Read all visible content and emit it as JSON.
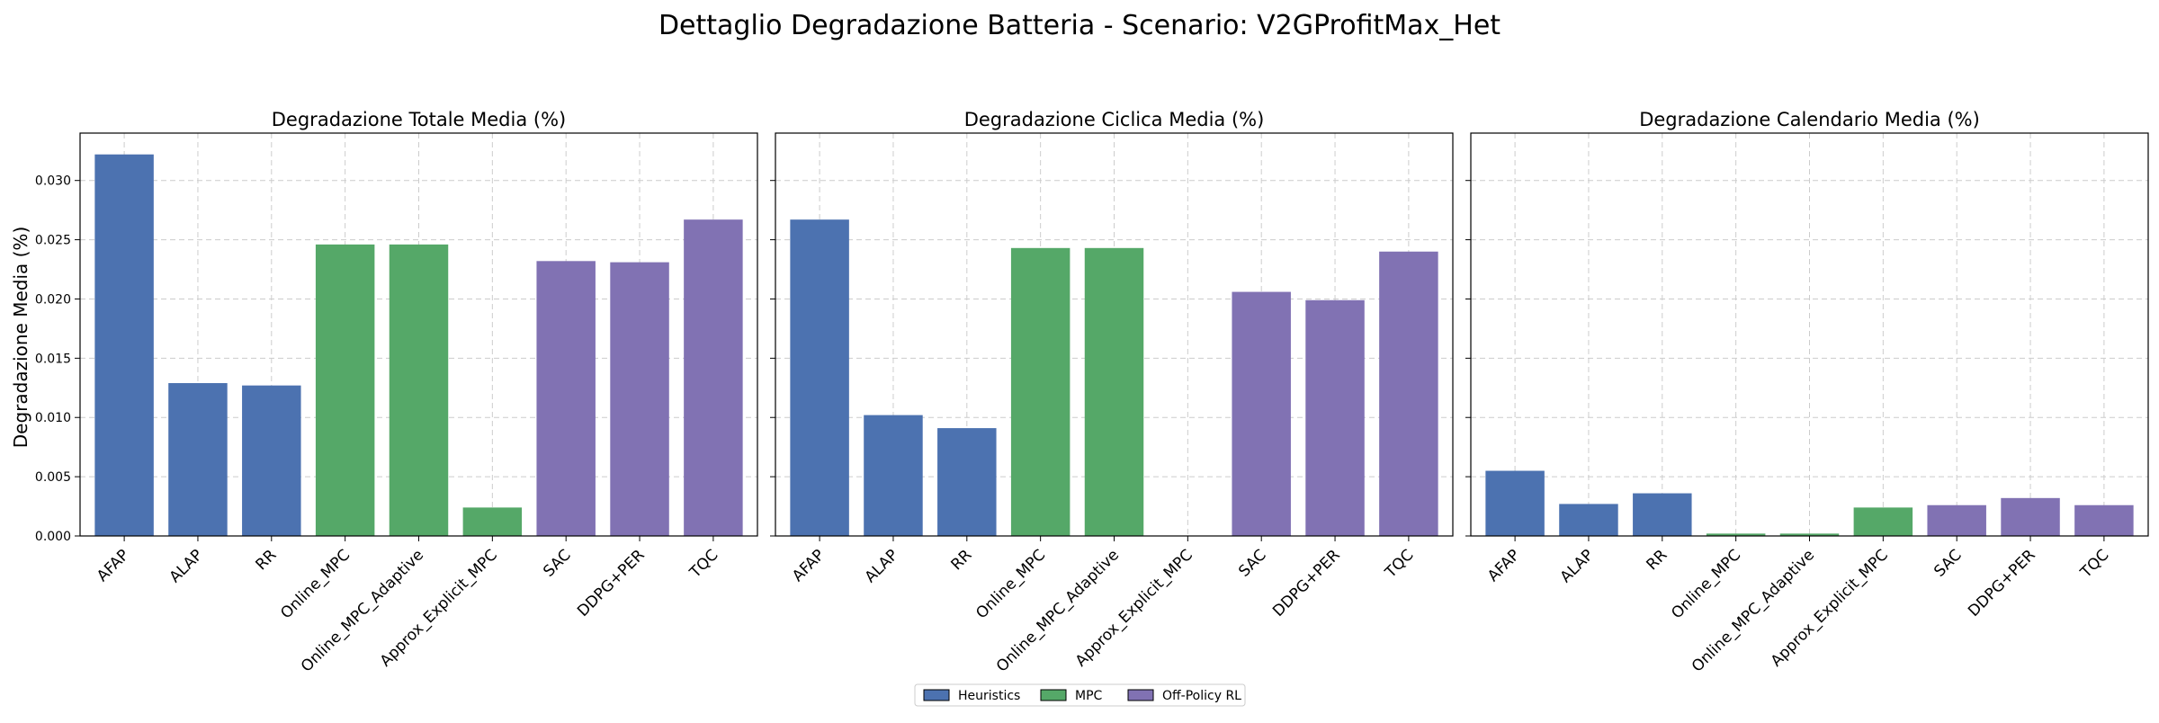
{
  "figure": {
    "title": "Dettaglio Degradazione Batteria - Scenario: V2GProfitMax_Het",
    "ylabel": "Degradazione Media (%)"
  },
  "legend": {
    "placement": "bottom-center",
    "items": [
      {
        "label": "Heuristics",
        "color": "#4c72b0"
      },
      {
        "label": "MPC",
        "color": "#55a868"
      },
      {
        "label": "Off-Policy RL",
        "color": "#8172b3"
      }
    ]
  },
  "colors": {
    "Heuristics": "#4c72b0",
    "MPC": "#55a868",
    "Off-Policy RL": "#8172b3",
    "grid": "#cccccc"
  },
  "chart_data": [
    {
      "type": "bar",
      "title": "Degradazione Totale Media (%)",
      "categories": [
        "AFAP",
        "ALAP",
        "RR",
        "Online_MPC",
        "Online_MPC_Adaptive",
        "Approx_Explicit_MPC",
        "SAC",
        "DDPG+PER",
        "TQC"
      ],
      "groups": [
        "Heuristics",
        "Heuristics",
        "Heuristics",
        "MPC",
        "MPC",
        "MPC",
        "Off-Policy RL",
        "Off-Policy RL",
        "Off-Policy RL"
      ],
      "values": [
        0.0322,
        0.0129,
        0.0127,
        0.0246,
        0.0246,
        0.0024,
        0.0232,
        0.0231,
        0.0267
      ],
      "ylim": [
        0,
        0.034
      ],
      "yticks": [
        0.0,
        0.005,
        0.01,
        0.015,
        0.02,
        0.025,
        0.03
      ],
      "ytick_labels": [
        "0.000",
        "0.005",
        "0.010",
        "0.015",
        "0.020",
        "0.025",
        "0.030"
      ],
      "grid": true
    },
    {
      "type": "bar",
      "title": "Degradazione Ciclica Media (%)",
      "categories": [
        "AFAP",
        "ALAP",
        "RR",
        "Online_MPC",
        "Online_MPC_Adaptive",
        "Approx_Explicit_MPC",
        "SAC",
        "DDPG+PER",
        "TQC"
      ],
      "groups": [
        "Heuristics",
        "Heuristics",
        "Heuristics",
        "MPC",
        "MPC",
        "MPC",
        "Off-Policy RL",
        "Off-Policy RL",
        "Off-Policy RL"
      ],
      "values": [
        0.0267,
        0.0102,
        0.0091,
        0.0243,
        0.0243,
        0.0,
        0.0206,
        0.0199,
        0.024
      ],
      "ylim": [
        0,
        0.034
      ],
      "yticks": [
        0.0,
        0.005,
        0.01,
        0.015,
        0.02,
        0.025,
        0.03
      ],
      "grid": true
    },
    {
      "type": "bar",
      "title": "Degradazione Calendario Media (%)",
      "categories": [
        "AFAP",
        "ALAP",
        "RR",
        "Online_MPC",
        "Online_MPC_Adaptive",
        "Approx_Explicit_MPC",
        "SAC",
        "DDPG+PER",
        "TQC"
      ],
      "groups": [
        "Heuristics",
        "Heuristics",
        "Heuristics",
        "MPC",
        "MPC",
        "MPC",
        "Off-Policy RL",
        "Off-Policy RL",
        "Off-Policy RL"
      ],
      "values": [
        0.0055,
        0.0027,
        0.0036,
        0.0002,
        0.0002,
        0.0024,
        0.0026,
        0.0032,
        0.0026
      ],
      "ylim": [
        0,
        0.034
      ],
      "yticks": [
        0.0,
        0.005,
        0.01,
        0.015,
        0.02,
        0.025,
        0.03
      ],
      "grid": true
    }
  ]
}
